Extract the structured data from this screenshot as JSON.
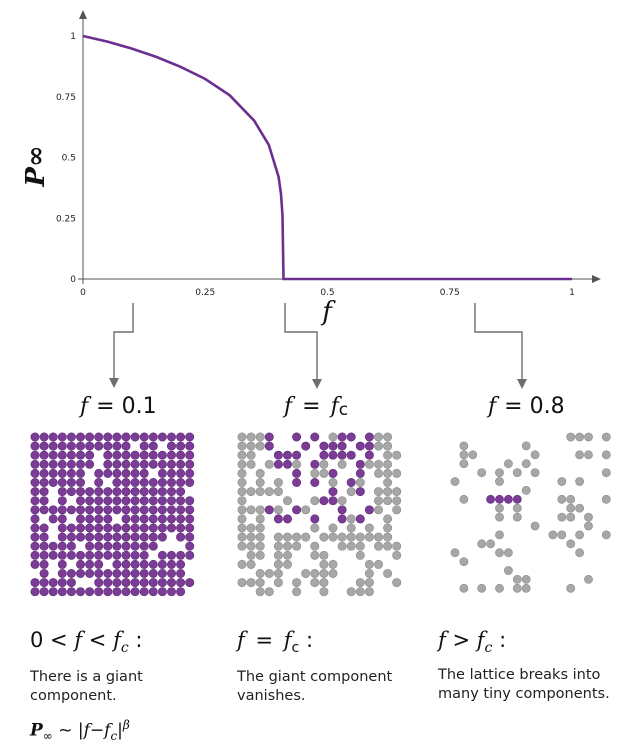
{
  "chart_data": {
    "type": "line",
    "xlabel": "f",
    "ylabel": "P∞",
    "xlim": [
      0,
      1.07
    ],
    "ylim": [
      0,
      1.12
    ],
    "x_ticks": [
      "0",
      "0.25",
      "0.5",
      "0.75",
      "1"
    ],
    "y_ticks": [
      "0",
      "0.25",
      "0.5",
      "0.75",
      "1"
    ],
    "critical_f": 0.41,
    "series": [
      {
        "color": "#6b2f8f",
        "x": [
          0,
          0.05,
          0.1,
          0.15,
          0.2,
          0.25,
          0.3,
          0.35,
          0.38,
          0.4,
          0.405,
          0.408,
          0.41,
          0.41,
          0.5,
          0.75,
          1
        ],
        "y": [
          1,
          0.977,
          0.948,
          0.914,
          0.873,
          0.823,
          0.756,
          0.652,
          0.552,
          0.42,
          0.35,
          0.26,
          0.0,
          0,
          0,
          0,
          0
        ]
      }
    ]
  },
  "colors": {
    "curve": "#6b2f8f",
    "giant": "#7b3c96",
    "other": "#a7a7a7",
    "arrow": "#6e6e6e"
  },
  "panels": [
    {
      "label_f": "f",
      "label_eq": "= 0.1"
    },
    {
      "label_f": "f",
      "label_eq": "=",
      "label_fc": "f",
      "label_c": "c"
    },
    {
      "label_f": "f",
      "label_eq": "= 0.8"
    }
  ],
  "captions": {
    "left": {
      "lhs": "0 <",
      "f": "f",
      "lt": "<",
      "fc": "f",
      "c": "c",
      "colon": ":",
      "text": "There is a giant component.",
      "formula": {
        "p": "P",
        "inf": "∞",
        "tilde": "~ |",
        "f": "f",
        "minus": "−",
        "fc": "f",
        "c": "c",
        "bar": "|",
        "beta": "β"
      }
    },
    "middle": {
      "f": "f",
      "eq": "=",
      "fc": "f",
      "c": "c",
      "colon": ":",
      "text": "The giant component vanishes."
    },
    "right": {
      "f": "f",
      "gt": ">",
      "fc": "f",
      "c": "c",
      "colon": ":",
      "text": "The lattice breaks into many tiny components."
    }
  }
}
